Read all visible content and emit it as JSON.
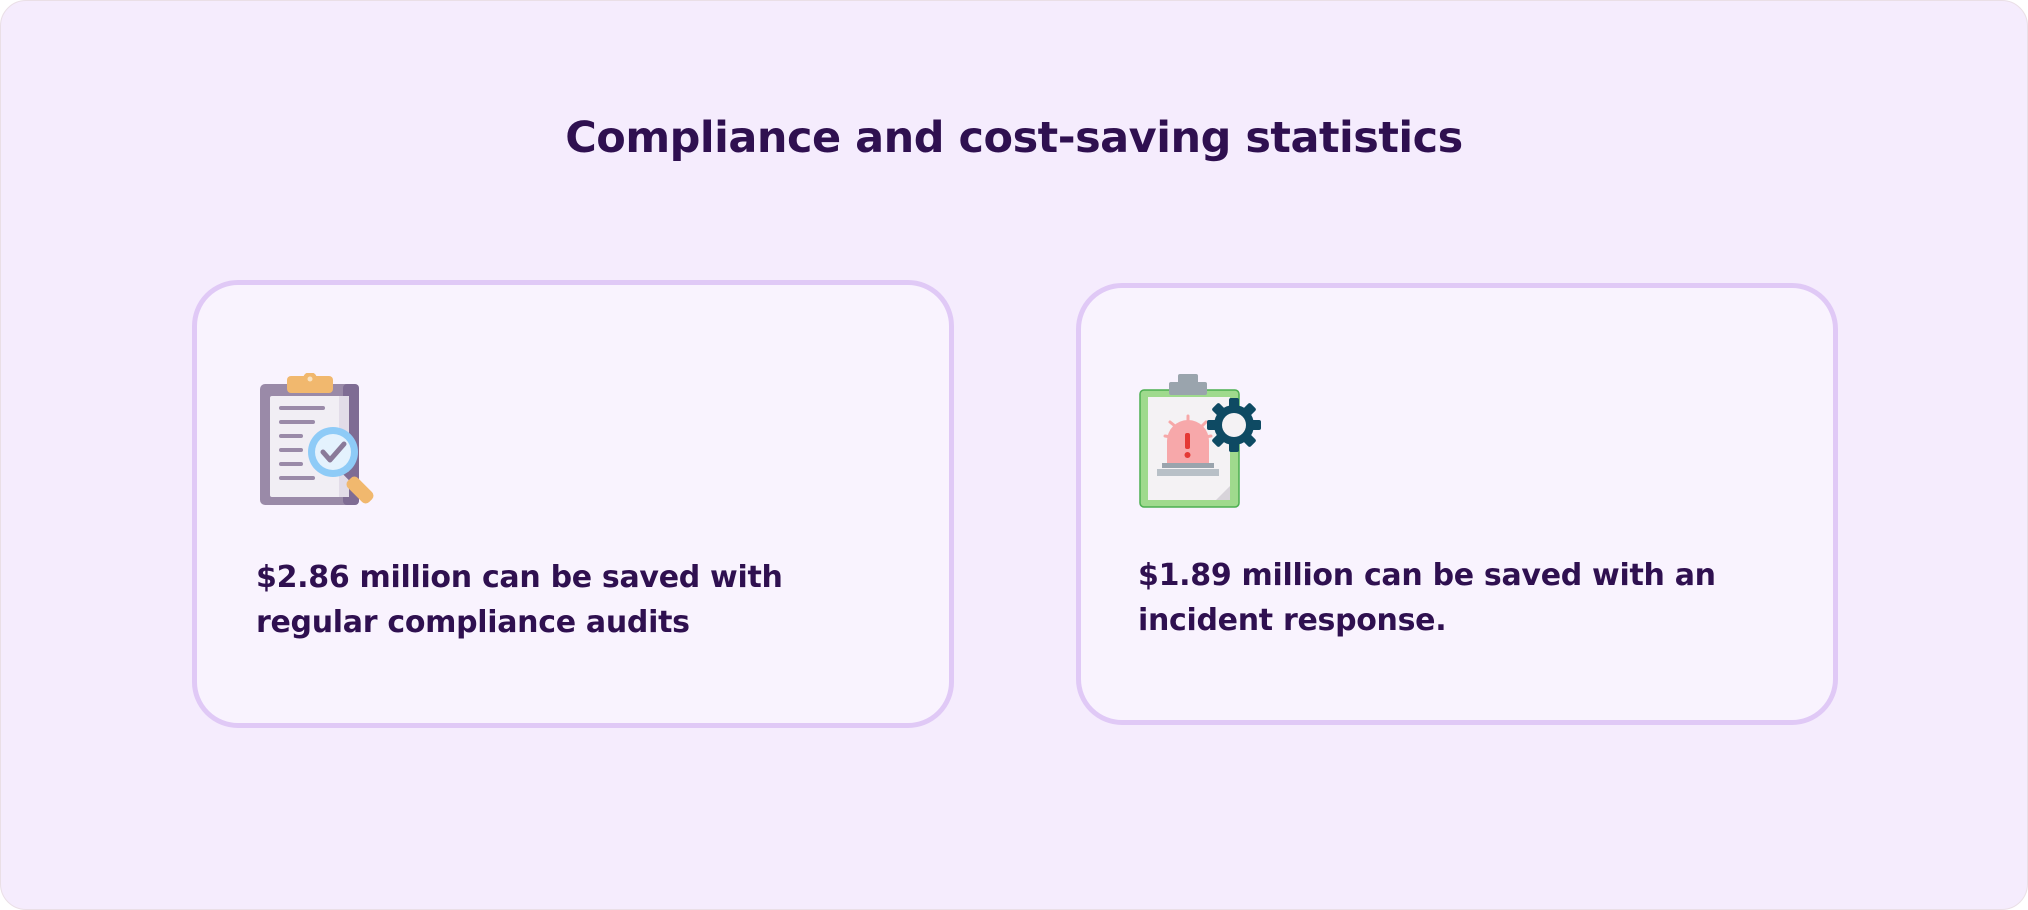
{
  "page": {
    "title": "Compliance and cost-saving statistics",
    "background": "#f5ecfd",
    "text_color": "#2f1050",
    "card_border": "#e0c9f6"
  },
  "cards": [
    {
      "icon": "clipboard-magnifier-check-icon",
      "text": "$2.86 million can be saved with regular compliance audits"
    },
    {
      "icon": "clipboard-alarm-gear-icon",
      "text": "$1.89 million can be saved with an incident response."
    }
  ]
}
